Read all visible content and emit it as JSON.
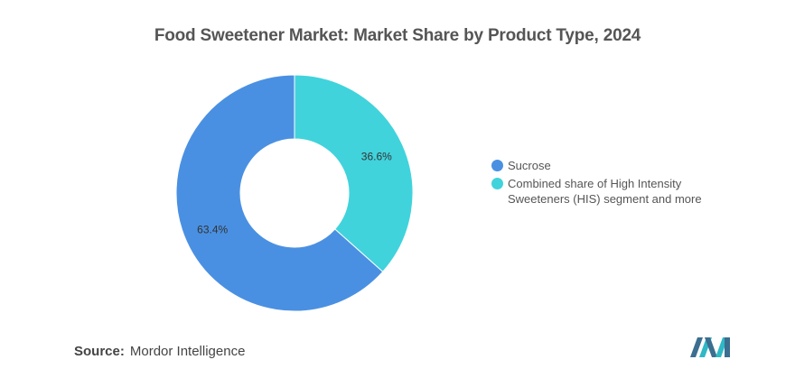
{
  "chart_data": {
    "type": "pie",
    "title": "Food Sweetener Market: Market Share by Product Type, 2024",
    "categories": [
      "Sucrose",
      "Combined share of High Intensity Sweeteners (HIS) segment and more"
    ],
    "values": [
      63.4,
      36.6
    ],
    "value_labels": [
      "63.4%",
      "36.6%"
    ],
    "colors": [
      "#4a90e2",
      "#40d3dc"
    ],
    "donut": true,
    "legend_position": "right"
  },
  "source": {
    "label": "Source:",
    "text": "Mordor Intelligence"
  }
}
